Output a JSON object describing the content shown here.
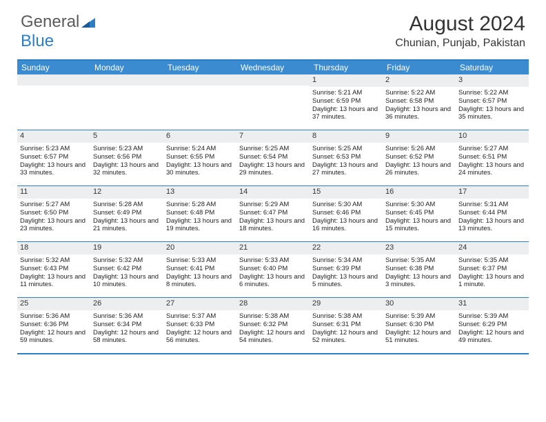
{
  "brand": {
    "part1": "General",
    "part2": "Blue"
  },
  "title": "August 2024",
  "location": "Chunian, Punjab, Pakistan",
  "colors": {
    "header_bg": "#3a8bd0",
    "border": "#2d7dc2",
    "daynum_bg": "#eceeef",
    "text": "#222222",
    "logo_gray": "#5a5a5a",
    "logo_blue": "#2d7dc2"
  },
  "day_names": [
    "Sunday",
    "Monday",
    "Tuesday",
    "Wednesday",
    "Thursday",
    "Friday",
    "Saturday"
  ],
  "weeks": [
    [
      null,
      null,
      null,
      null,
      {
        "n": "1",
        "sr": "5:21 AM",
        "ss": "6:59 PM",
        "dl": "13 hours and 37 minutes."
      },
      {
        "n": "2",
        "sr": "5:22 AM",
        "ss": "6:58 PM",
        "dl": "13 hours and 36 minutes."
      },
      {
        "n": "3",
        "sr": "5:22 AM",
        "ss": "6:57 PM",
        "dl": "13 hours and 35 minutes."
      }
    ],
    [
      {
        "n": "4",
        "sr": "5:23 AM",
        "ss": "6:57 PM",
        "dl": "13 hours and 33 minutes."
      },
      {
        "n": "5",
        "sr": "5:23 AM",
        "ss": "6:56 PM",
        "dl": "13 hours and 32 minutes."
      },
      {
        "n": "6",
        "sr": "5:24 AM",
        "ss": "6:55 PM",
        "dl": "13 hours and 30 minutes."
      },
      {
        "n": "7",
        "sr": "5:25 AM",
        "ss": "6:54 PM",
        "dl": "13 hours and 29 minutes."
      },
      {
        "n": "8",
        "sr": "5:25 AM",
        "ss": "6:53 PM",
        "dl": "13 hours and 27 minutes."
      },
      {
        "n": "9",
        "sr": "5:26 AM",
        "ss": "6:52 PM",
        "dl": "13 hours and 26 minutes."
      },
      {
        "n": "10",
        "sr": "5:27 AM",
        "ss": "6:51 PM",
        "dl": "13 hours and 24 minutes."
      }
    ],
    [
      {
        "n": "11",
        "sr": "5:27 AM",
        "ss": "6:50 PM",
        "dl": "13 hours and 23 minutes."
      },
      {
        "n": "12",
        "sr": "5:28 AM",
        "ss": "6:49 PM",
        "dl": "13 hours and 21 minutes."
      },
      {
        "n": "13",
        "sr": "5:28 AM",
        "ss": "6:48 PM",
        "dl": "13 hours and 19 minutes."
      },
      {
        "n": "14",
        "sr": "5:29 AM",
        "ss": "6:47 PM",
        "dl": "13 hours and 18 minutes."
      },
      {
        "n": "15",
        "sr": "5:30 AM",
        "ss": "6:46 PM",
        "dl": "13 hours and 16 minutes."
      },
      {
        "n": "16",
        "sr": "5:30 AM",
        "ss": "6:45 PM",
        "dl": "13 hours and 15 minutes."
      },
      {
        "n": "17",
        "sr": "5:31 AM",
        "ss": "6:44 PM",
        "dl": "13 hours and 13 minutes."
      }
    ],
    [
      {
        "n": "18",
        "sr": "5:32 AM",
        "ss": "6:43 PM",
        "dl": "13 hours and 11 minutes."
      },
      {
        "n": "19",
        "sr": "5:32 AM",
        "ss": "6:42 PM",
        "dl": "13 hours and 10 minutes."
      },
      {
        "n": "20",
        "sr": "5:33 AM",
        "ss": "6:41 PM",
        "dl": "13 hours and 8 minutes."
      },
      {
        "n": "21",
        "sr": "5:33 AM",
        "ss": "6:40 PM",
        "dl": "13 hours and 6 minutes."
      },
      {
        "n": "22",
        "sr": "5:34 AM",
        "ss": "6:39 PM",
        "dl": "13 hours and 5 minutes."
      },
      {
        "n": "23",
        "sr": "5:35 AM",
        "ss": "6:38 PM",
        "dl": "13 hours and 3 minutes."
      },
      {
        "n": "24",
        "sr": "5:35 AM",
        "ss": "6:37 PM",
        "dl": "13 hours and 1 minute."
      }
    ],
    [
      {
        "n": "25",
        "sr": "5:36 AM",
        "ss": "6:36 PM",
        "dl": "12 hours and 59 minutes."
      },
      {
        "n": "26",
        "sr": "5:36 AM",
        "ss": "6:34 PM",
        "dl": "12 hours and 58 minutes."
      },
      {
        "n": "27",
        "sr": "5:37 AM",
        "ss": "6:33 PM",
        "dl": "12 hours and 56 minutes."
      },
      {
        "n": "28",
        "sr": "5:38 AM",
        "ss": "6:32 PM",
        "dl": "12 hours and 54 minutes."
      },
      {
        "n": "29",
        "sr": "5:38 AM",
        "ss": "6:31 PM",
        "dl": "12 hours and 52 minutes."
      },
      {
        "n": "30",
        "sr": "5:39 AM",
        "ss": "6:30 PM",
        "dl": "12 hours and 51 minutes."
      },
      {
        "n": "31",
        "sr": "5:39 AM",
        "ss": "6:29 PM",
        "dl": "12 hours and 49 minutes."
      }
    ]
  ],
  "labels": {
    "sunrise": "Sunrise:",
    "sunset": "Sunset:",
    "daylight": "Daylight:"
  }
}
